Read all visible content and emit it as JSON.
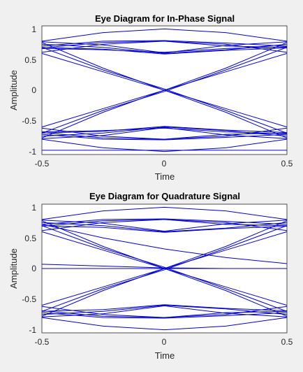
{
  "line_color": "#0000cc",
  "chart_data": [
    {
      "type": "line",
      "title": "Eye Diagram for In-Phase Signal",
      "xlabel": "Time",
      "ylabel": "Amplitude",
      "xlim": [
        -0.5,
        0.5
      ],
      "ylim": [
        -1.05,
        1.05
      ],
      "xticks": [
        "-0.5",
        "0",
        "0.5"
      ],
      "yticks": [
        "1",
        "0.5",
        "0",
        "-0.5",
        "-1"
      ],
      "x": [
        -0.5,
        -0.25,
        0,
        0.25,
        0.5
      ],
      "series": [
        {
          "values": [
            0.62,
            0.75,
            0.8,
            0.75,
            0.62
          ]
        },
        {
          "values": [
            0.69,
            0.78,
            0.8,
            0.72,
            0.7
          ]
        },
        {
          "values": [
            0.72,
            0.8,
            0.81,
            0.77,
            0.72
          ]
        },
        {
          "values": [
            0.8,
            0.94,
            1.0,
            0.94,
            0.8
          ]
        },
        {
          "values": [
            0.75,
            0.7,
            0.6,
            0.66,
            0.75
          ]
        },
        {
          "values": [
            0.7,
            0.67,
            0.59,
            0.65,
            0.69
          ]
        },
        {
          "values": [
            0.79,
            0.74,
            0.61,
            0.73,
            0.79
          ]
        },
        {
          "values": [
            0.68,
            0.66,
            0.62,
            0.68,
            0.71
          ]
        },
        {
          "values": [
            -0.62,
            -0.75,
            -0.8,
            -0.75,
            -0.62
          ]
        },
        {
          "values": [
            -0.69,
            -0.78,
            -0.8,
            -0.72,
            -0.7
          ]
        },
        {
          "values": [
            -0.72,
            -0.8,
            -0.81,
            -0.77,
            -0.72
          ]
        },
        {
          "values": [
            -0.8,
            -0.94,
            -1.0,
            -0.94,
            -0.8
          ]
        },
        {
          "values": [
            -0.75,
            -0.7,
            -0.6,
            -0.66,
            -0.75
          ]
        },
        {
          "values": [
            -0.7,
            -0.67,
            -0.59,
            -0.65,
            -0.69
          ]
        },
        {
          "values": [
            -0.79,
            -0.74,
            -0.61,
            -0.73,
            -0.79
          ]
        },
        {
          "values": [
            -0.68,
            -0.66,
            -0.62,
            -0.68,
            -0.71
          ]
        },
        {
          "values": [
            0.78,
            0.36,
            0.0,
            -0.36,
            -0.78
          ]
        },
        {
          "values": [
            0.7,
            0.33,
            0.02,
            -0.33,
            -0.7
          ]
        },
        {
          "values": [
            0.6,
            0.3,
            0.0,
            -0.3,
            -0.6
          ]
        },
        {
          "values": [
            -0.78,
            -0.36,
            0.0,
            0.36,
            0.78
          ]
        },
        {
          "values": [
            -0.7,
            -0.33,
            -0.02,
            0.33,
            0.7
          ]
        },
        {
          "values": [
            -0.6,
            -0.3,
            0.0,
            0.3,
            0.6
          ]
        },
        {
          "values": [
            -0.98,
            -0.98,
            -0.98,
            -0.98,
            -0.98
          ]
        }
      ]
    },
    {
      "type": "line",
      "title": "Eye Diagram for Quadrature Signal",
      "xlabel": "Time",
      "ylabel": "Amplitude",
      "xlim": [
        -0.5,
        0.5
      ],
      "ylim": [
        -1.05,
        1.05
      ],
      "xticks": [
        "-0.5",
        "0",
        "0.5"
      ],
      "yticks": [
        "1",
        "0.5",
        "0",
        "-0.5",
        "-1"
      ],
      "x": [
        -0.5,
        -0.25,
        0,
        0.25,
        0.5
      ],
      "series": [
        {
          "values": [
            0.62,
            0.75,
            0.8,
            0.75,
            0.62
          ]
        },
        {
          "values": [
            0.69,
            0.78,
            0.8,
            0.72,
            0.7
          ]
        },
        {
          "values": [
            0.72,
            0.8,
            0.81,
            0.77,
            0.72
          ]
        },
        {
          "values": [
            0.8,
            0.94,
            1.0,
            0.94,
            0.8
          ]
        },
        {
          "values": [
            0.75,
            0.7,
            0.6,
            0.66,
            0.75
          ]
        },
        {
          "values": [
            0.7,
            0.67,
            0.59,
            0.65,
            0.69
          ]
        },
        {
          "values": [
            0.79,
            0.74,
            0.61,
            0.73,
            0.79
          ]
        },
        {
          "values": [
            -0.62,
            -0.75,
            -0.8,
            -0.75,
            -0.62
          ]
        },
        {
          "values": [
            -0.69,
            -0.78,
            -0.8,
            -0.72,
            -0.7
          ]
        },
        {
          "values": [
            -0.72,
            -0.8,
            -0.81,
            -0.77,
            -0.72
          ]
        },
        {
          "values": [
            -0.8,
            -0.94,
            -1.0,
            -0.94,
            -0.8
          ]
        },
        {
          "values": [
            -0.75,
            -0.7,
            -0.6,
            -0.66,
            -0.75
          ]
        },
        {
          "values": [
            -0.7,
            -0.67,
            -0.59,
            -0.65,
            -0.69
          ]
        },
        {
          "values": [
            -0.79,
            -0.74,
            -0.61,
            -0.73,
            -0.79
          ]
        },
        {
          "values": [
            0.78,
            0.36,
            0.0,
            -0.36,
            -0.78
          ]
        },
        {
          "values": [
            0.7,
            0.33,
            0.02,
            -0.33,
            -0.7
          ]
        },
        {
          "values": [
            0.6,
            0.3,
            0.0,
            -0.3,
            -0.6
          ]
        },
        {
          "values": [
            -0.78,
            -0.36,
            0.0,
            0.36,
            0.78
          ]
        },
        {
          "values": [
            -0.7,
            -0.33,
            -0.02,
            0.33,
            0.7
          ]
        },
        {
          "values": [
            -0.6,
            -0.3,
            0.0,
            0.3,
            0.6
          ]
        },
        {
          "values": [
            0.72,
            0.5,
            0.32,
            0.18,
            0.08
          ]
        },
        {
          "values": [
            0.07,
            0.04,
            0.01,
            0.0,
            0.0
          ]
        },
        {
          "values": [
            0.0,
            0.0,
            0.0,
            0.0,
            0.0
          ]
        }
      ]
    }
  ]
}
